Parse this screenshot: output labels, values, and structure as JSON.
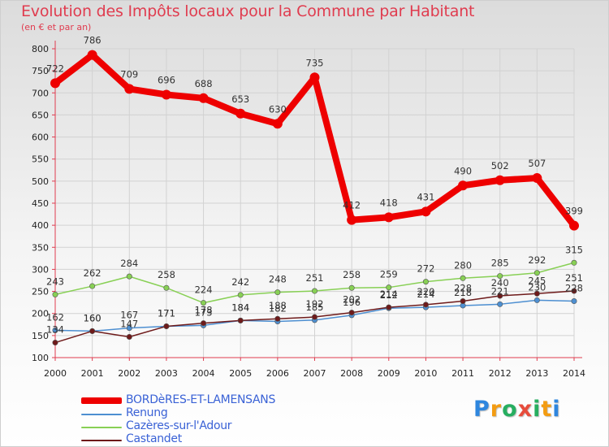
{
  "chart_data": {
    "type": "line",
    "title": "Evolution des Impôts locaux pour la Commune par Habitant",
    "subtitle": "(en € et par an)",
    "x": [
      "2000",
      "2001",
      "2002",
      "2003",
      "2004",
      "2005",
      "2006",
      "2007",
      "2008",
      "2009",
      "2010",
      "2011",
      "2012",
      "2013",
      "2014"
    ],
    "ylim": [
      100,
      800
    ],
    "yticks": [
      100,
      150,
      200,
      250,
      300,
      350,
      400,
      450,
      500,
      550,
      600,
      650,
      700,
      750,
      800
    ],
    "grid": true,
    "legend_position": "bottom-left",
    "series": [
      {
        "name": "BORDèRES-ET-LAMENSANS",
        "color": "#ee0000",
        "values": [
          722,
          786,
          709,
          696,
          688,
          653,
          630,
          735,
          412,
          418,
          431,
          490,
          502,
          507,
          399
        ],
        "labels": [
          "722",
          "786",
          "709",
          "696",
          "688",
          "653",
          "630",
          "735",
          "412",
          "418",
          "431",
          "490",
          "502",
          "507",
          "399"
        ]
      },
      {
        "name": "Renung",
        "color": "#4d8fd1",
        "values": [
          162,
          160,
          167,
          171,
          173,
          184,
          182,
          185,
          196,
          212,
          214,
          218,
          221,
          230,
          228
        ],
        "labels": [
          "162",
          "160",
          "167",
          "171",
          "173",
          "184",
          "182",
          "185",
          "196",
          "212",
          "214",
          "218",
          "221",
          "230",
          "228"
        ]
      },
      {
        "name": "Cazères-sur-l'Adour",
        "color": "#88d055",
        "values": [
          243,
          262,
          284,
          258,
          224,
          242,
          248,
          251,
          258,
          259,
          272,
          280,
          285,
          292,
          315
        ],
        "labels": [
          "243",
          "262",
          "284",
          "258",
          "224",
          "242",
          "248",
          "251",
          "258",
          "259",
          "272",
          "280",
          "285",
          "292",
          "315"
        ]
      },
      {
        "name": "Castandet",
        "color": "#6e1a1a",
        "values": [
          134,
          160,
          147,
          171,
          178,
          184,
          188,
          192,
          202,
          214,
          220,
          228,
          240,
          245,
          251
        ],
        "labels": [
          "134",
          "160",
          "147",
          "171",
          "178",
          "184",
          "188",
          "192",
          "202",
          "214",
          "220",
          "228",
          "240",
          "245",
          "251"
        ]
      }
    ]
  },
  "logo": {
    "text": "Proxiti",
    "letters": [
      "P",
      "r",
      "o",
      "x",
      "i",
      "t",
      "i"
    ],
    "colors": [
      "#2e86de",
      "#f39c12",
      "#27ae60",
      "#e74c3c",
      "#27ae60",
      "#f39c12",
      "#2e86de"
    ]
  }
}
